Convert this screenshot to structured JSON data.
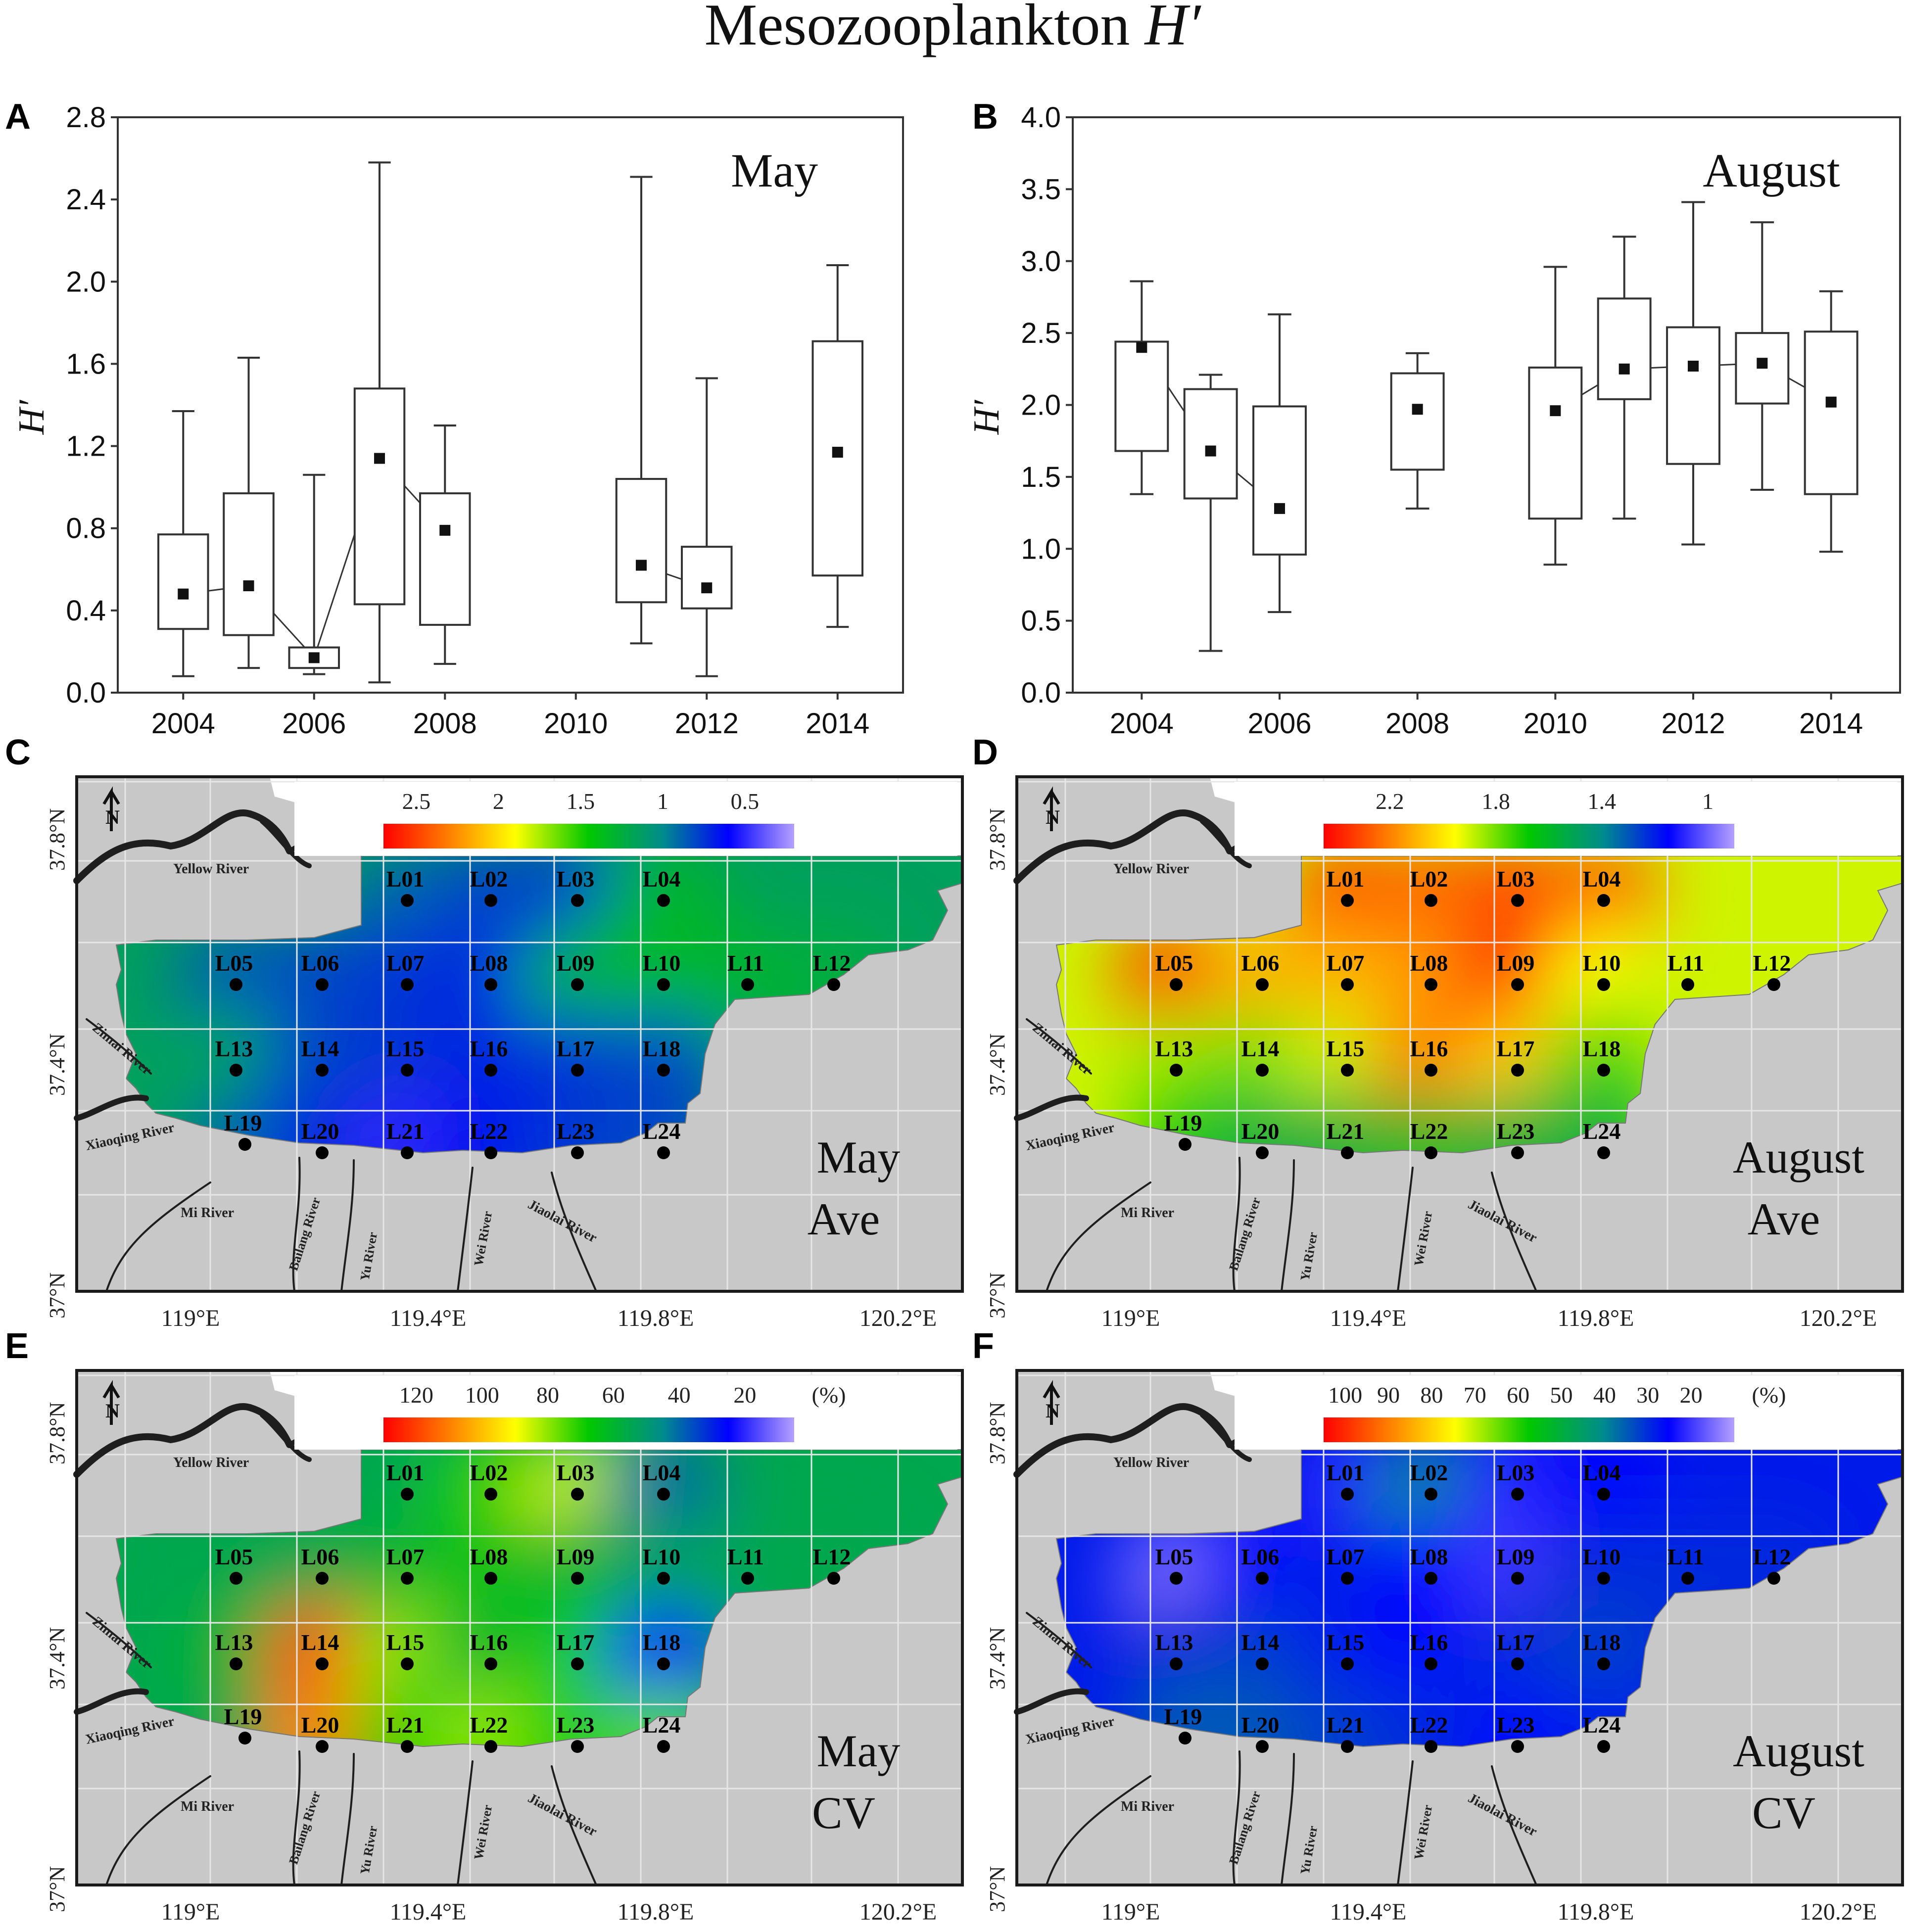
{
  "figure": {
    "title_main": "Mesozooplankton ",
    "title_italic": "H′"
  },
  "colors": {
    "land": "#c8c8c8",
    "frame": "#1a1a1a",
    "grid": "#e6e6e6",
    "river": "#1e1e1e",
    "station": "#000000"
  },
  "chart_data": [
    {
      "panel": "A",
      "type": "box",
      "title": "May",
      "ylabel": "H′",
      "ylim": [
        0,
        2.8
      ],
      "yticks": [
        "0.0",
        "0.4",
        "0.8",
        "1.2",
        "1.6",
        "2.0",
        "2.4",
        "2.8"
      ],
      "xlim": [
        2003,
        2015
      ],
      "xticks": [
        "2004",
        "2006",
        "2008",
        "2010",
        "2012",
        "2014"
      ],
      "boxes": [
        {
          "year": 2004,
          "min": 0.08,
          "q1": 0.31,
          "mean": 0.48,
          "q3": 0.77,
          "max": 1.37
        },
        {
          "year": 2005,
          "min": 0.12,
          "q1": 0.28,
          "mean": 0.52,
          "q3": 0.97,
          "max": 1.63
        },
        {
          "year": 2006,
          "min": 0.09,
          "q1": 0.12,
          "mean": 0.17,
          "q3": 0.22,
          "max": 1.06
        },
        {
          "year": 2007,
          "min": 0.05,
          "q1": 0.43,
          "mean": 1.14,
          "q3": 1.48,
          "max": 2.58
        },
        {
          "year": 2008,
          "min": 0.14,
          "q1": 0.33,
          "mean": 0.79,
          "q3": 0.97,
          "max": 1.3
        },
        {
          "year": 2011,
          "min": 0.24,
          "q1": 0.44,
          "mean": 0.62,
          "q3": 1.04,
          "max": 2.51
        },
        {
          "year": 2012,
          "min": 0.08,
          "q1": 0.41,
          "mean": 0.51,
          "q3": 0.71,
          "max": 1.53
        },
        {
          "year": 2014,
          "min": 0.32,
          "q1": 0.57,
          "mean": 1.17,
          "q3": 1.71,
          "max": 2.08
        }
      ],
      "mean_lines": [
        [
          2004,
          2005,
          2006,
          2007,
          2008
        ],
        [
          2011,
          2012
        ]
      ]
    },
    {
      "panel": "B",
      "type": "box",
      "title": "August",
      "ylabel": "H′",
      "ylim": [
        0,
        4.0
      ],
      "yticks": [
        "0.0",
        "0.5",
        "1.0",
        "1.5",
        "2.0",
        "2.5",
        "3.0",
        "3.5",
        "4.0"
      ],
      "xlim": [
        2003,
        2015
      ],
      "xticks": [
        "2004",
        "2006",
        "2008",
        "2010",
        "2012",
        "2014"
      ],
      "boxes": [
        {
          "year": 2004,
          "min": 1.38,
          "q1": 1.68,
          "mean": 2.4,
          "q3": 2.44,
          "max": 2.86
        },
        {
          "year": 2005,
          "min": 0.29,
          "q1": 1.35,
          "mean": 1.68,
          "q3": 2.11,
          "max": 2.21
        },
        {
          "year": 2006,
          "min": 0.56,
          "q1": 0.96,
          "mean": 1.28,
          "q3": 1.99,
          "max": 2.63
        },
        {
          "year": 2008,
          "min": 1.28,
          "q1": 1.55,
          "mean": 1.97,
          "q3": 2.22,
          "max": 2.36
        },
        {
          "year": 2010,
          "min": 0.89,
          "q1": 1.21,
          "mean": 1.96,
          "q3": 2.26,
          "max": 2.96
        },
        {
          "year": 2011,
          "min": 1.21,
          "q1": 2.04,
          "mean": 2.25,
          "q3": 2.74,
          "max": 3.17
        },
        {
          "year": 2012,
          "min": 1.03,
          "q1": 1.59,
          "mean": 2.27,
          "q3": 2.54,
          "max": 3.41
        },
        {
          "year": 2013,
          "min": 1.41,
          "q1": 2.01,
          "mean": 2.29,
          "q3": 2.5,
          "max": 3.27
        },
        {
          "year": 2014,
          "min": 0.98,
          "q1": 1.38,
          "mean": 2.02,
          "q3": 2.51,
          "max": 2.79
        }
      ],
      "mean_lines": [
        [
          2004,
          2005,
          2006
        ],
        [
          2010,
          2011,
          2012,
          2013,
          2014
        ]
      ]
    }
  ],
  "maps": {
    "lat_ticks": [
      "37.8°N",
      "37.4°N",
      "37°N"
    ],
    "lon_ticks": [
      "119°E",
      "119.4°E",
      "119.8°E",
      "120.2°E"
    ],
    "rivers": [
      "Yellow River",
      "Zimai River",
      "Xiaoqing River",
      "Mi River",
      "Bailang River",
      "Yu River",
      "Wei River",
      "Jiaolai River"
    ],
    "stations": [
      "L01",
      "L02",
      "L03",
      "L04",
      "L05",
      "L06",
      "L07",
      "L08",
      "L09",
      "L10",
      "L11",
      "L12",
      "L13",
      "L14",
      "L15",
      "L16",
      "L17",
      "L18",
      "L19",
      "L20",
      "L21",
      "L22",
      "L23",
      "L24"
    ],
    "panels": [
      {
        "panel": "C",
        "line1": "May",
        "line2": "Ave",
        "colorbar_ticks": [
          "2.5",
          "2",
          "1.5",
          "1",
          "0.5"
        ],
        "unit": "",
        "scale": [
          0.2,
          2.7
        ],
        "values": [
          0.9,
          0.8,
          0.75,
          1.3,
          0.85,
          0.8,
          0.75,
          0.7,
          1.3,
          1.35,
          1.3,
          1.25,
          1.2,
          0.8,
          0.75,
          0.7,
          0.75,
          0.8,
          0.9,
          0.7,
          0.5,
          0.65,
          0.75,
          0.8
        ],
        "background": 1.15
      },
      {
        "panel": "D",
        "line1": "August",
        "line2": "Ave",
        "colorbar_ticks": [
          "2.2",
          "1.8",
          "1.4",
          "1"
        ],
        "unit": "",
        "scale": [
          0.9,
          2.45
        ],
        "values": [
          2.3,
          2.25,
          2.3,
          2.25,
          2.35,
          2.1,
          2.1,
          2.15,
          2.4,
          1.95,
          1.9,
          1.9,
          1.85,
          1.8,
          1.9,
          2.2,
          2.05,
          1.75,
          1.7,
          1.55,
          1.55,
          1.6,
          1.55,
          1.55
        ],
        "background": 1.9
      },
      {
        "panel": "E",
        "line1": "May",
        "line2": "CV",
        "colorbar_ticks": [
          "120",
          "100",
          "80",
          "60",
          "40",
          "20"
        ],
        "unit": "(%)",
        "scale": [
          5,
          130
        ],
        "values": [
          55,
          70,
          85,
          40,
          55,
          55,
          60,
          65,
          60,
          55,
          55,
          55,
          60,
          120,
          80,
          60,
          70,
          25,
          55,
          110,
          70,
          80,
          70,
          75
        ],
        "background": 55
      },
      {
        "panel": "F",
        "line1": "August",
        "line2": "CV",
        "colorbar_ticks": [
          "100",
          "90",
          "80",
          "70",
          "60",
          "50",
          "40",
          "30",
          "20"
        ],
        "unit": "(%)",
        "scale": [
          10,
          105
        ],
        "values": [
          22,
          40,
          22,
          25,
          15,
          25,
          28,
          25,
          20,
          30,
          30,
          30,
          30,
          32,
          28,
          25,
          30,
          32,
          35,
          35,
          32,
          30,
          25,
          28
        ],
        "background": 28
      }
    ]
  }
}
